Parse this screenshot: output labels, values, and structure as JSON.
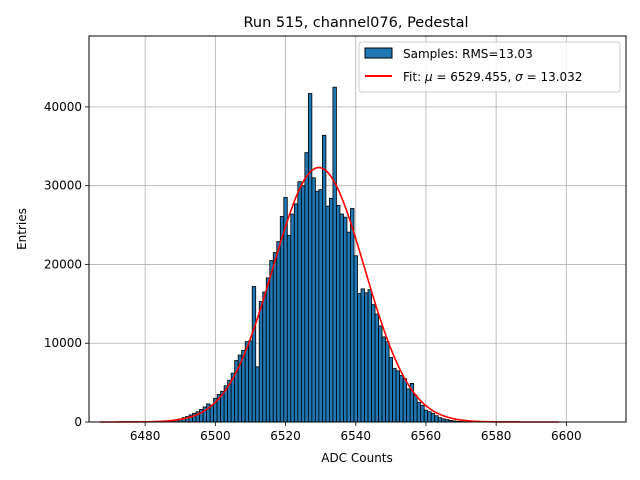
{
  "chart_data": {
    "type": "bar",
    "title": "Run 515, channel076, Pedestal",
    "xlabel": "ADC Counts",
    "ylabel": "Entries",
    "xlim": [
      6464,
      6617
    ],
    "ylim": [
      0,
      49000
    ],
    "grid": true,
    "legend_placement": "top-right",
    "x_ticks": [
      6480,
      6500,
      6520,
      6540,
      6560,
      6580,
      6600
    ],
    "y_ticks": [
      0,
      10000,
      20000,
      30000,
      40000
    ],
    "bar_color": "#1f77b4",
    "fit_color": "#ff0000",
    "legend": {
      "samples_label": "Samples: RMS=13.03",
      "fit_label_prefix": "Fit: ",
      "fit_mu_symbol": "μ",
      "fit_mu_value": " = 6529.455, ",
      "fit_sigma_symbol": "σ",
      "fit_sigma_value": " = 13.032"
    },
    "fit": {
      "mu": 6529.455,
      "sigma": 13.032,
      "amplitude": 32300,
      "x_range": [
        6467,
        6598
      ]
    },
    "bin_width": 1,
    "bins": [
      {
        "x": 6483,
        "y": 30
      },
      {
        "x": 6484,
        "y": 50
      },
      {
        "x": 6485,
        "y": 70
      },
      {
        "x": 6486,
        "y": 100
      },
      {
        "x": 6487,
        "y": 150
      },
      {
        "x": 6488,
        "y": 200
      },
      {
        "x": 6489,
        "y": 300
      },
      {
        "x": 6490,
        "y": 400
      },
      {
        "x": 6491,
        "y": 550
      },
      {
        "x": 6492,
        "y": 700
      },
      {
        "x": 6493,
        "y": 900
      },
      {
        "x": 6494,
        "y": 1100
      },
      {
        "x": 6495,
        "y": 1300
      },
      {
        "x": 6496,
        "y": 1600
      },
      {
        "x": 6497,
        "y": 1900
      },
      {
        "x": 6498,
        "y": 2300
      },
      {
        "x": 6499,
        "y": 2100
      },
      {
        "x": 6500,
        "y": 3000
      },
      {
        "x": 6501,
        "y": 3500
      },
      {
        "x": 6502,
        "y": 3900
      },
      {
        "x": 6503,
        "y": 4600
      },
      {
        "x": 6504,
        "y": 5300
      },
      {
        "x": 6505,
        "y": 6200
      },
      {
        "x": 6506,
        "y": 7800
      },
      {
        "x": 6507,
        "y": 8500
      },
      {
        "x": 6508,
        "y": 9100
      },
      {
        "x": 6509,
        "y": 10200
      },
      {
        "x": 6510,
        "y": 10300
      },
      {
        "x": 6511,
        "y": 17200
      },
      {
        "x": 6512,
        "y": 7000
      },
      {
        "x": 6513,
        "y": 15300
      },
      {
        "x": 6514,
        "y": 16500
      },
      {
        "x": 6515,
        "y": 18300
      },
      {
        "x": 6516,
        "y": 20500
      },
      {
        "x": 6517,
        "y": 21500
      },
      {
        "x": 6518,
        "y": 22900
      },
      {
        "x": 6519,
        "y": 26100
      },
      {
        "x": 6520,
        "y": 28500
      },
      {
        "x": 6521,
        "y": 23700
      },
      {
        "x": 6522,
        "y": 26400
      },
      {
        "x": 6523,
        "y": 27700
      },
      {
        "x": 6524,
        "y": 30500
      },
      {
        "x": 6525,
        "y": 30000
      },
      {
        "x": 6526,
        "y": 34200
      },
      {
        "x": 6527,
        "y": 41700
      },
      {
        "x": 6528,
        "y": 31000
      },
      {
        "x": 6529,
        "y": 29300
      },
      {
        "x": 6530,
        "y": 29500
      },
      {
        "x": 6531,
        "y": 36400
      },
      {
        "x": 6532,
        "y": 27400
      },
      {
        "x": 6533,
        "y": 28400
      },
      {
        "x": 6534,
        "y": 42500
      },
      {
        "x": 6535,
        "y": 27500
      },
      {
        "x": 6536,
        "y": 26400
      },
      {
        "x": 6537,
        "y": 26000
      },
      {
        "x": 6538,
        "y": 24100
      },
      {
        "x": 6539,
        "y": 27100
      },
      {
        "x": 6540,
        "y": 21100
      },
      {
        "x": 6541,
        "y": 16300
      },
      {
        "x": 6542,
        "y": 16900
      },
      {
        "x": 6543,
        "y": 16400
      },
      {
        "x": 6544,
        "y": 16800
      },
      {
        "x": 6545,
        "y": 14900
      },
      {
        "x": 6546,
        "y": 13700
      },
      {
        "x": 6547,
        "y": 12200
      },
      {
        "x": 6548,
        "y": 10800
      },
      {
        "x": 6549,
        "y": 10200
      },
      {
        "x": 6550,
        "y": 8200
      },
      {
        "x": 6551,
        "y": 6800
      },
      {
        "x": 6552,
        "y": 6500
      },
      {
        "x": 6553,
        "y": 5900
      },
      {
        "x": 6554,
        "y": 5500
      },
      {
        "x": 6555,
        "y": 4200
      },
      {
        "x": 6556,
        "y": 4900
      },
      {
        "x": 6557,
        "y": 3400
      },
      {
        "x": 6558,
        "y": 2500
      },
      {
        "x": 6559,
        "y": 2100
      },
      {
        "x": 6560,
        "y": 1500
      },
      {
        "x": 6561,
        "y": 1300
      },
      {
        "x": 6562,
        "y": 1100
      },
      {
        "x": 6563,
        "y": 800
      },
      {
        "x": 6564,
        "y": 550
      },
      {
        "x": 6565,
        "y": 400
      },
      {
        "x": 6566,
        "y": 300
      },
      {
        "x": 6567,
        "y": 200
      },
      {
        "x": 6568,
        "y": 140
      },
      {
        "x": 6569,
        "y": 90
      },
      {
        "x": 6570,
        "y": 60
      },
      {
        "x": 6571,
        "y": 40
      },
      {
        "x": 6572,
        "y": 20
      }
    ]
  }
}
